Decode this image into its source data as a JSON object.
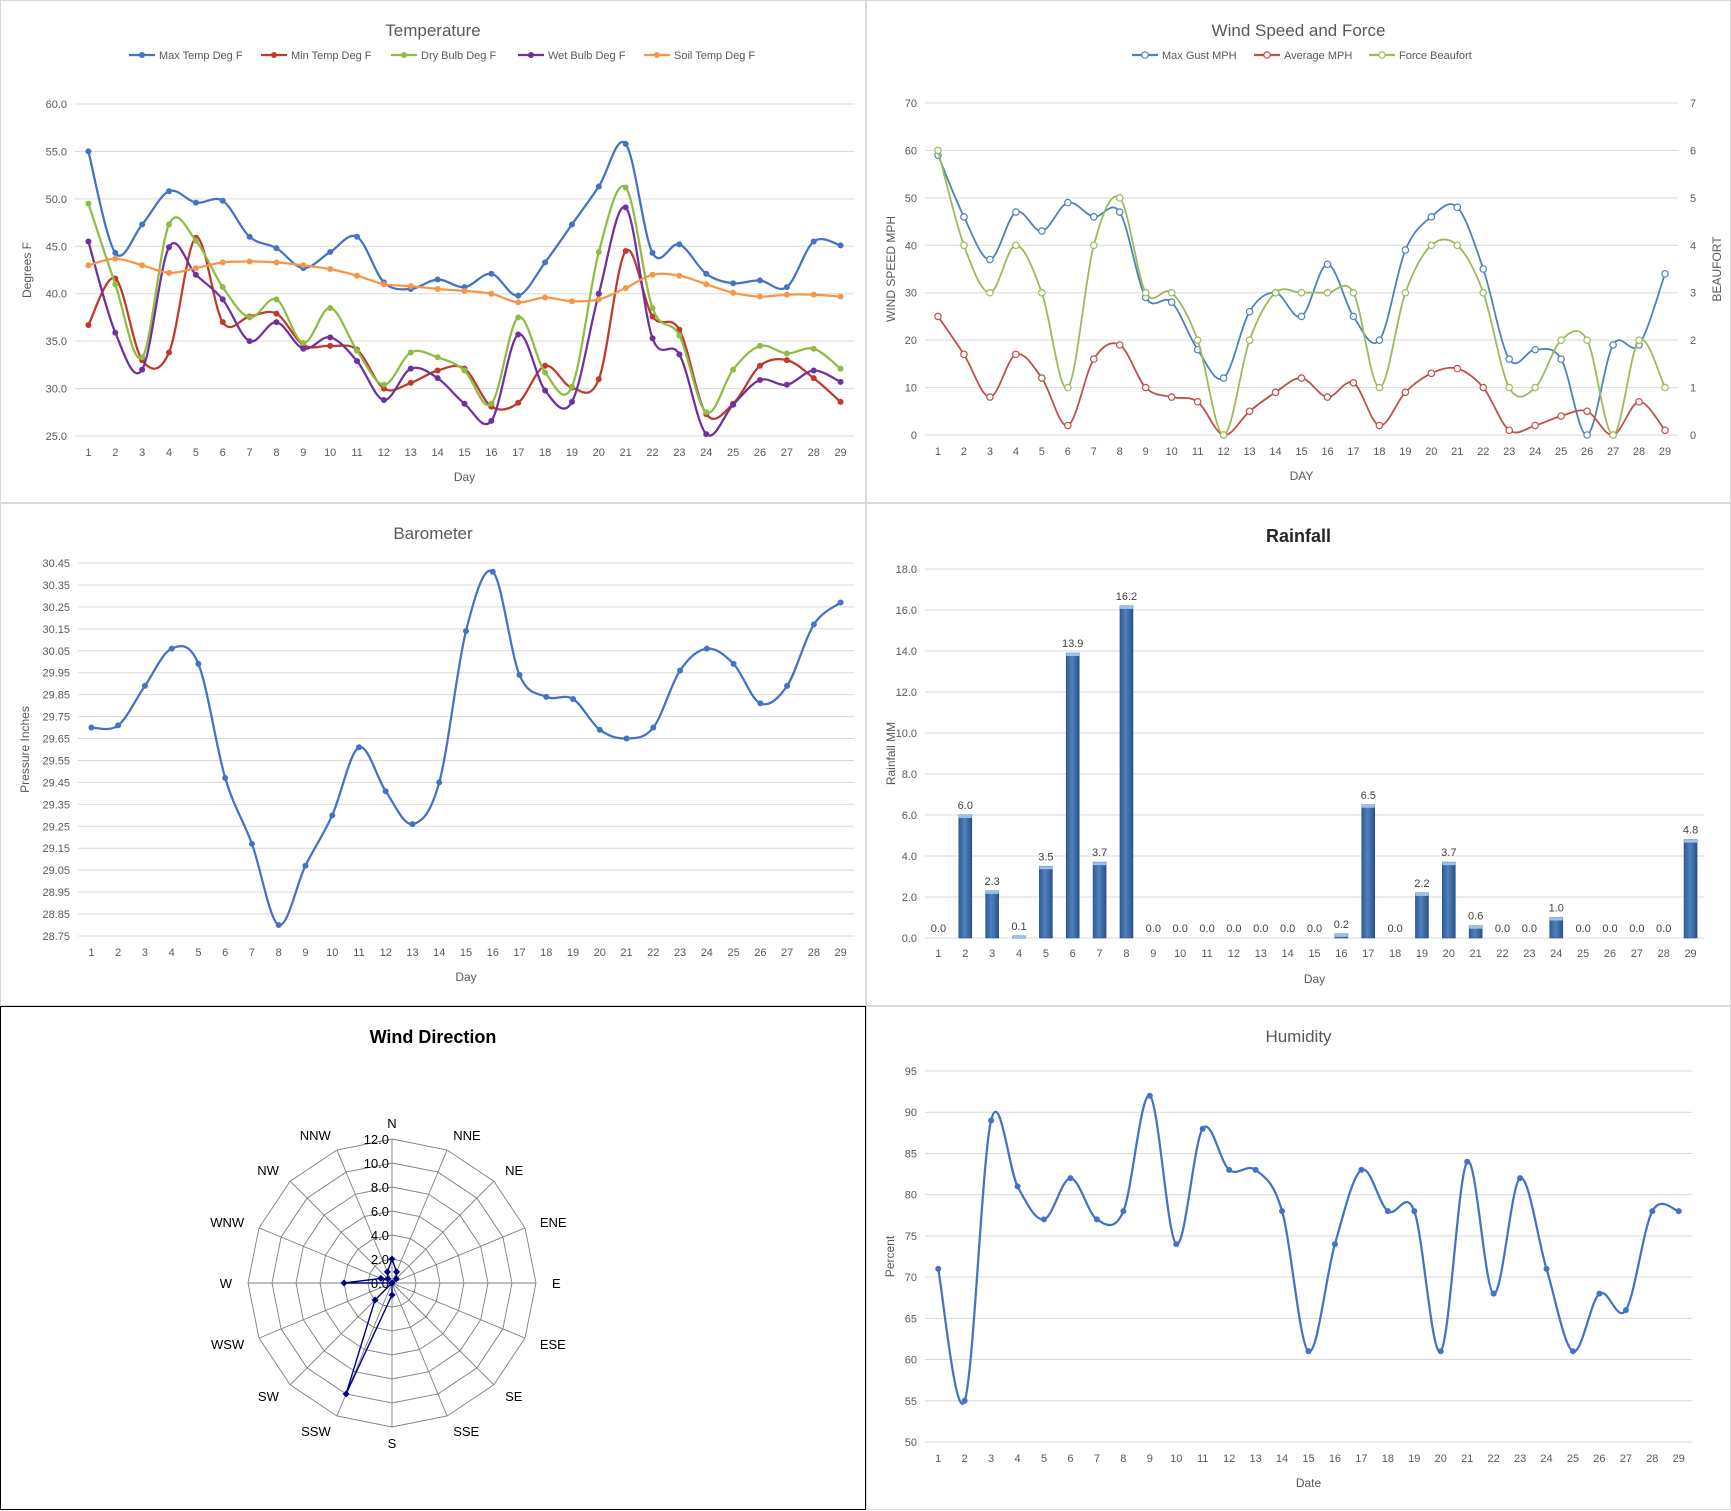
{
  "chart_data": [
    {
      "id": "temperature",
      "type": "line",
      "title": "Temperature",
      "xlabel": "Day",
      "ylabel": "Degrees F",
      "ylim": [
        25,
        60
      ],
      "yticks": [
        "60.0",
        "55.0",
        "50.0",
        "45.0",
        "40.0",
        "35.0",
        "30.0",
        "25.0"
      ],
      "categories": [
        "1",
        "2",
        "3",
        "4",
        "5",
        "6",
        "7",
        "8",
        "9",
        "10",
        "11",
        "12",
        "13",
        "14",
        "15",
        "16",
        "17",
        "18",
        "19",
        "20",
        "21",
        "22",
        "23",
        "24",
        "25",
        "26",
        "27",
        "28",
        "29"
      ],
      "legend": "top",
      "series": [
        {
          "name": "Max Temp Deg F",
          "color": "#4472c4",
          "values": [
            55.0,
            44.3,
            47.3,
            50.8,
            49.6,
            49.8,
            46.0,
            44.8,
            42.7,
            44.4,
            46.0,
            41.2,
            40.5,
            41.5,
            40.7,
            42.1,
            39.8,
            43.3,
            47.3,
            51.3,
            55.8,
            44.3,
            45.2,
            42.1,
            41.1,
            41.4,
            40.7,
            45.5,
            45.1
          ]
        },
        {
          "name": "Min Temp Deg F",
          "color": "#c0392b",
          "values": [
            36.7,
            41.6,
            33.0,
            33.8,
            45.9,
            37.0,
            37.6,
            37.9,
            34.6,
            34.5,
            34.1,
            30.0,
            30.6,
            31.9,
            32.1,
            28.1,
            28.5,
            32.4,
            30.1,
            31.0,
            44.5,
            37.6,
            36.2,
            27.3,
            28.4,
            32.4,
            33.0,
            31.1,
            28.6
          ]
        },
        {
          "name": "Dry Bulb Deg F",
          "color": "#8fbc45",
          "values": [
            49.5,
            41.0,
            33.3,
            47.3,
            45.6,
            40.7,
            37.5,
            39.4,
            34.8,
            38.5,
            34.0,
            30.4,
            33.8,
            33.3,
            31.9,
            28.4,
            37.5,
            31.7,
            30.2,
            44.4,
            51.2,
            38.5,
            35.6,
            27.5,
            32.0,
            34.5,
            33.7,
            34.2,
            32.1
          ]
        },
        {
          "name": "Wet Bulb Deg F",
          "color": "#7030a0",
          "values": [
            45.5,
            35.9,
            32.0,
            44.9,
            42.0,
            39.4,
            35.0,
            37.0,
            34.2,
            35.4,
            32.9,
            28.8,
            32.1,
            31.1,
            28.4,
            26.6,
            35.7,
            29.8,
            28.6,
            40.0,
            49.1,
            35.3,
            33.6,
            25.2,
            28.3,
            30.9,
            30.4,
            31.9,
            30.7
          ]
        },
        {
          "name": "Soil Temp Deg F",
          "color": "#f79646",
          "values": [
            43.0,
            43.7,
            43.0,
            42.2,
            42.7,
            43.3,
            43.4,
            43.3,
            43.0,
            42.6,
            41.9,
            41.0,
            40.8,
            40.5,
            40.3,
            40.0,
            39.1,
            39.6,
            39.2,
            39.4,
            40.6,
            42.0,
            41.9,
            41.0,
            40.1,
            39.7,
            39.9,
            39.9,
            39.7
          ]
        }
      ]
    },
    {
      "id": "wind",
      "type": "line",
      "title": "Wind Speed and Force",
      "xlabel": "DAY",
      "ylabel": "WIND SPEED MPH",
      "y2label": "BEAUFORT",
      "ylim": [
        0,
        70
      ],
      "y2lim": [
        0,
        7
      ],
      "yticks": [
        "70",
        "60",
        "50",
        "40",
        "30",
        "20",
        "10",
        "0"
      ],
      "y2ticks": [
        "7",
        "6",
        "5",
        "4",
        "3",
        "2",
        "1",
        "0"
      ],
      "categories": [
        "1",
        "2",
        "3",
        "4",
        "5",
        "6",
        "7",
        "8",
        "9",
        "10",
        "11",
        "12",
        "13",
        "14",
        "15",
        "16",
        "17",
        "18",
        "19",
        "20",
        "21",
        "22",
        "23",
        "24",
        "25",
        "26",
        "27",
        "28",
        "29"
      ],
      "legend": "top",
      "series": [
        {
          "name": "Max Gust MPH",
          "color": "#4f81bd",
          "axis": "left",
          "values": [
            59,
            46,
            37,
            47,
            43,
            49,
            46,
            47,
            29,
            28,
            18,
            12,
            26,
            30,
            25,
            36,
            25,
            20,
            39,
            46,
            48,
            35,
            16,
            18,
            16,
            0,
            19,
            19,
            34
          ]
        },
        {
          "name": "Average MPH",
          "color": "#c0504d",
          "axis": "left",
          "values": [
            25,
            17,
            8,
            17,
            12,
            2,
            16,
            19,
            10,
            8,
            7,
            0,
            5,
            9,
            12,
            8,
            11,
            2,
            9,
            13,
            14,
            10,
            1,
            2,
            4,
            5,
            0,
            7,
            1
          ]
        },
        {
          "name": "Force Beaufort",
          "color": "#9bbb59",
          "axis": "right",
          "values": [
            6,
            4,
            3,
            4,
            3,
            1,
            4,
            5,
            3,
            3,
            2,
            0,
            2,
            3,
            3,
            3,
            3,
            1,
            3,
            4,
            4,
            3,
            1,
            1,
            2,
            2,
            0,
            2,
            1
          ]
        }
      ]
    },
    {
      "id": "barometer",
      "type": "line",
      "title": "Barometer",
      "xlabel": "Day",
      "ylabel": "Pressure Inches",
      "ylim": [
        28.75,
        30.45
      ],
      "yticks": [
        "30.45",
        "30.35",
        "30.25",
        "30.15",
        "30.05",
        "29.95",
        "29.85",
        "29.75",
        "29.65",
        "29.55",
        "29.45",
        "29.35",
        "29.25",
        "29.15",
        "29.05",
        "28.95",
        "28.85",
        "28.75"
      ],
      "categories": [
        "1",
        "2",
        "3",
        "4",
        "5",
        "6",
        "7",
        "8",
        "9",
        "10",
        "11",
        "12",
        "13",
        "14",
        "15",
        "16",
        "17",
        "18",
        "19",
        "20",
        "21",
        "22",
        "23",
        "24",
        "25",
        "26",
        "27",
        "28",
        "29"
      ],
      "series": [
        {
          "name": "",
          "color": "#4472c4",
          "values": [
            29.7,
            29.71,
            29.89,
            30.06,
            29.99,
            29.47,
            29.17,
            28.8,
            29.07,
            29.3,
            29.61,
            29.41,
            29.26,
            29.45,
            30.14,
            30.41,
            29.94,
            29.84,
            29.83,
            29.69,
            29.65,
            29.7,
            29.96,
            30.06,
            29.99,
            29.81,
            29.89,
            30.17,
            30.27
          ]
        }
      ]
    },
    {
      "id": "rainfall",
      "type": "bar",
      "title": "Rainfall",
      "xlabel": "Day",
      "ylabel": "Rainfall MM",
      "ylim": [
        0,
        18
      ],
      "yticks": [
        "18.0",
        "16.0",
        "14.0",
        "12.0",
        "10.0",
        "8.0",
        "6.0",
        "4.0",
        "2.0",
        "0.0"
      ],
      "categories": [
        "1",
        "2",
        "3",
        "4",
        "5",
        "6",
        "7",
        "8",
        "9",
        "10",
        "11",
        "12",
        "13",
        "14",
        "15",
        "16",
        "17",
        "18",
        "19",
        "20",
        "21",
        "22",
        "23",
        "24",
        "25",
        "26",
        "27",
        "28",
        "29"
      ],
      "values": [
        0.0,
        6.0,
        2.3,
        0.1,
        3.5,
        13.9,
        3.7,
        16.2,
        0.0,
        0.0,
        0.0,
        0.0,
        0.0,
        0.0,
        0.0,
        0.2,
        6.5,
        0.0,
        2.2,
        3.7,
        0.6,
        0.0,
        0.0,
        1.0,
        0.0,
        0.0,
        0.0,
        0.0,
        4.8
      ],
      "labels": [
        "0.0",
        "6.0",
        "2.3",
        "0.1",
        "3.5",
        "13.9",
        "3.7",
        "16.2",
        "0.0",
        "0.0",
        "0.0",
        "0.0",
        "0.0",
        "0.0",
        "0.0",
        "0.2",
        "6.5",
        "0.0",
        "2.2",
        "3.7",
        "0.6",
        "0.0",
        "0.0",
        "1.0",
        "0.0",
        "0.0",
        "0.0",
        "0.0",
        "4.8"
      ],
      "color": "#4f81bd"
    },
    {
      "id": "winddir",
      "type": "radar",
      "title": "Wind Direction",
      "rlim": [
        0,
        12
      ],
      "rticks": [
        "0.0",
        "2.0",
        "4.0",
        "6.0",
        "8.0",
        "10.0",
        "12.0"
      ],
      "directions": [
        "N",
        "NNE",
        "NE",
        "ENE",
        "E",
        "ESE",
        "SE",
        "SSE",
        "S",
        "SSW",
        "SW",
        "WSW",
        "W",
        "WNW",
        "NW",
        "NNW"
      ],
      "values": [
        2,
        1,
        0.5,
        0,
        0,
        0,
        0,
        0,
        1,
        10,
        2,
        0,
        4,
        1,
        0.5,
        1
      ],
      "color": "#000080"
    },
    {
      "id": "humidity",
      "type": "line",
      "title": "Humidity",
      "xlabel": "Date",
      "ylabel": "Percent",
      "ylim": [
        50,
        95
      ],
      "yticks": [
        "95",
        "90",
        "85",
        "80",
        "75",
        "70",
        "65",
        "60",
        "55",
        "50"
      ],
      "categories": [
        "1",
        "2",
        "3",
        "4",
        "5",
        "6",
        "7",
        "8",
        "9",
        "10",
        "11",
        "12",
        "13",
        "14",
        "15",
        "16",
        "17",
        "18",
        "19",
        "20",
        "21",
        "22",
        "23",
        "24",
        "25",
        "26",
        "27",
        "28",
        "29"
      ],
      "series": [
        {
          "name": "",
          "color": "#4472c4",
          "values": [
            71,
            55,
            89,
            81,
            77,
            82,
            77,
            78,
            92,
            74,
            88,
            83,
            83,
            78,
            61,
            74,
            83,
            78,
            78,
            61,
            84,
            68,
            82,
            71,
            61,
            68,
            66,
            78,
            78
          ]
        }
      ]
    }
  ]
}
